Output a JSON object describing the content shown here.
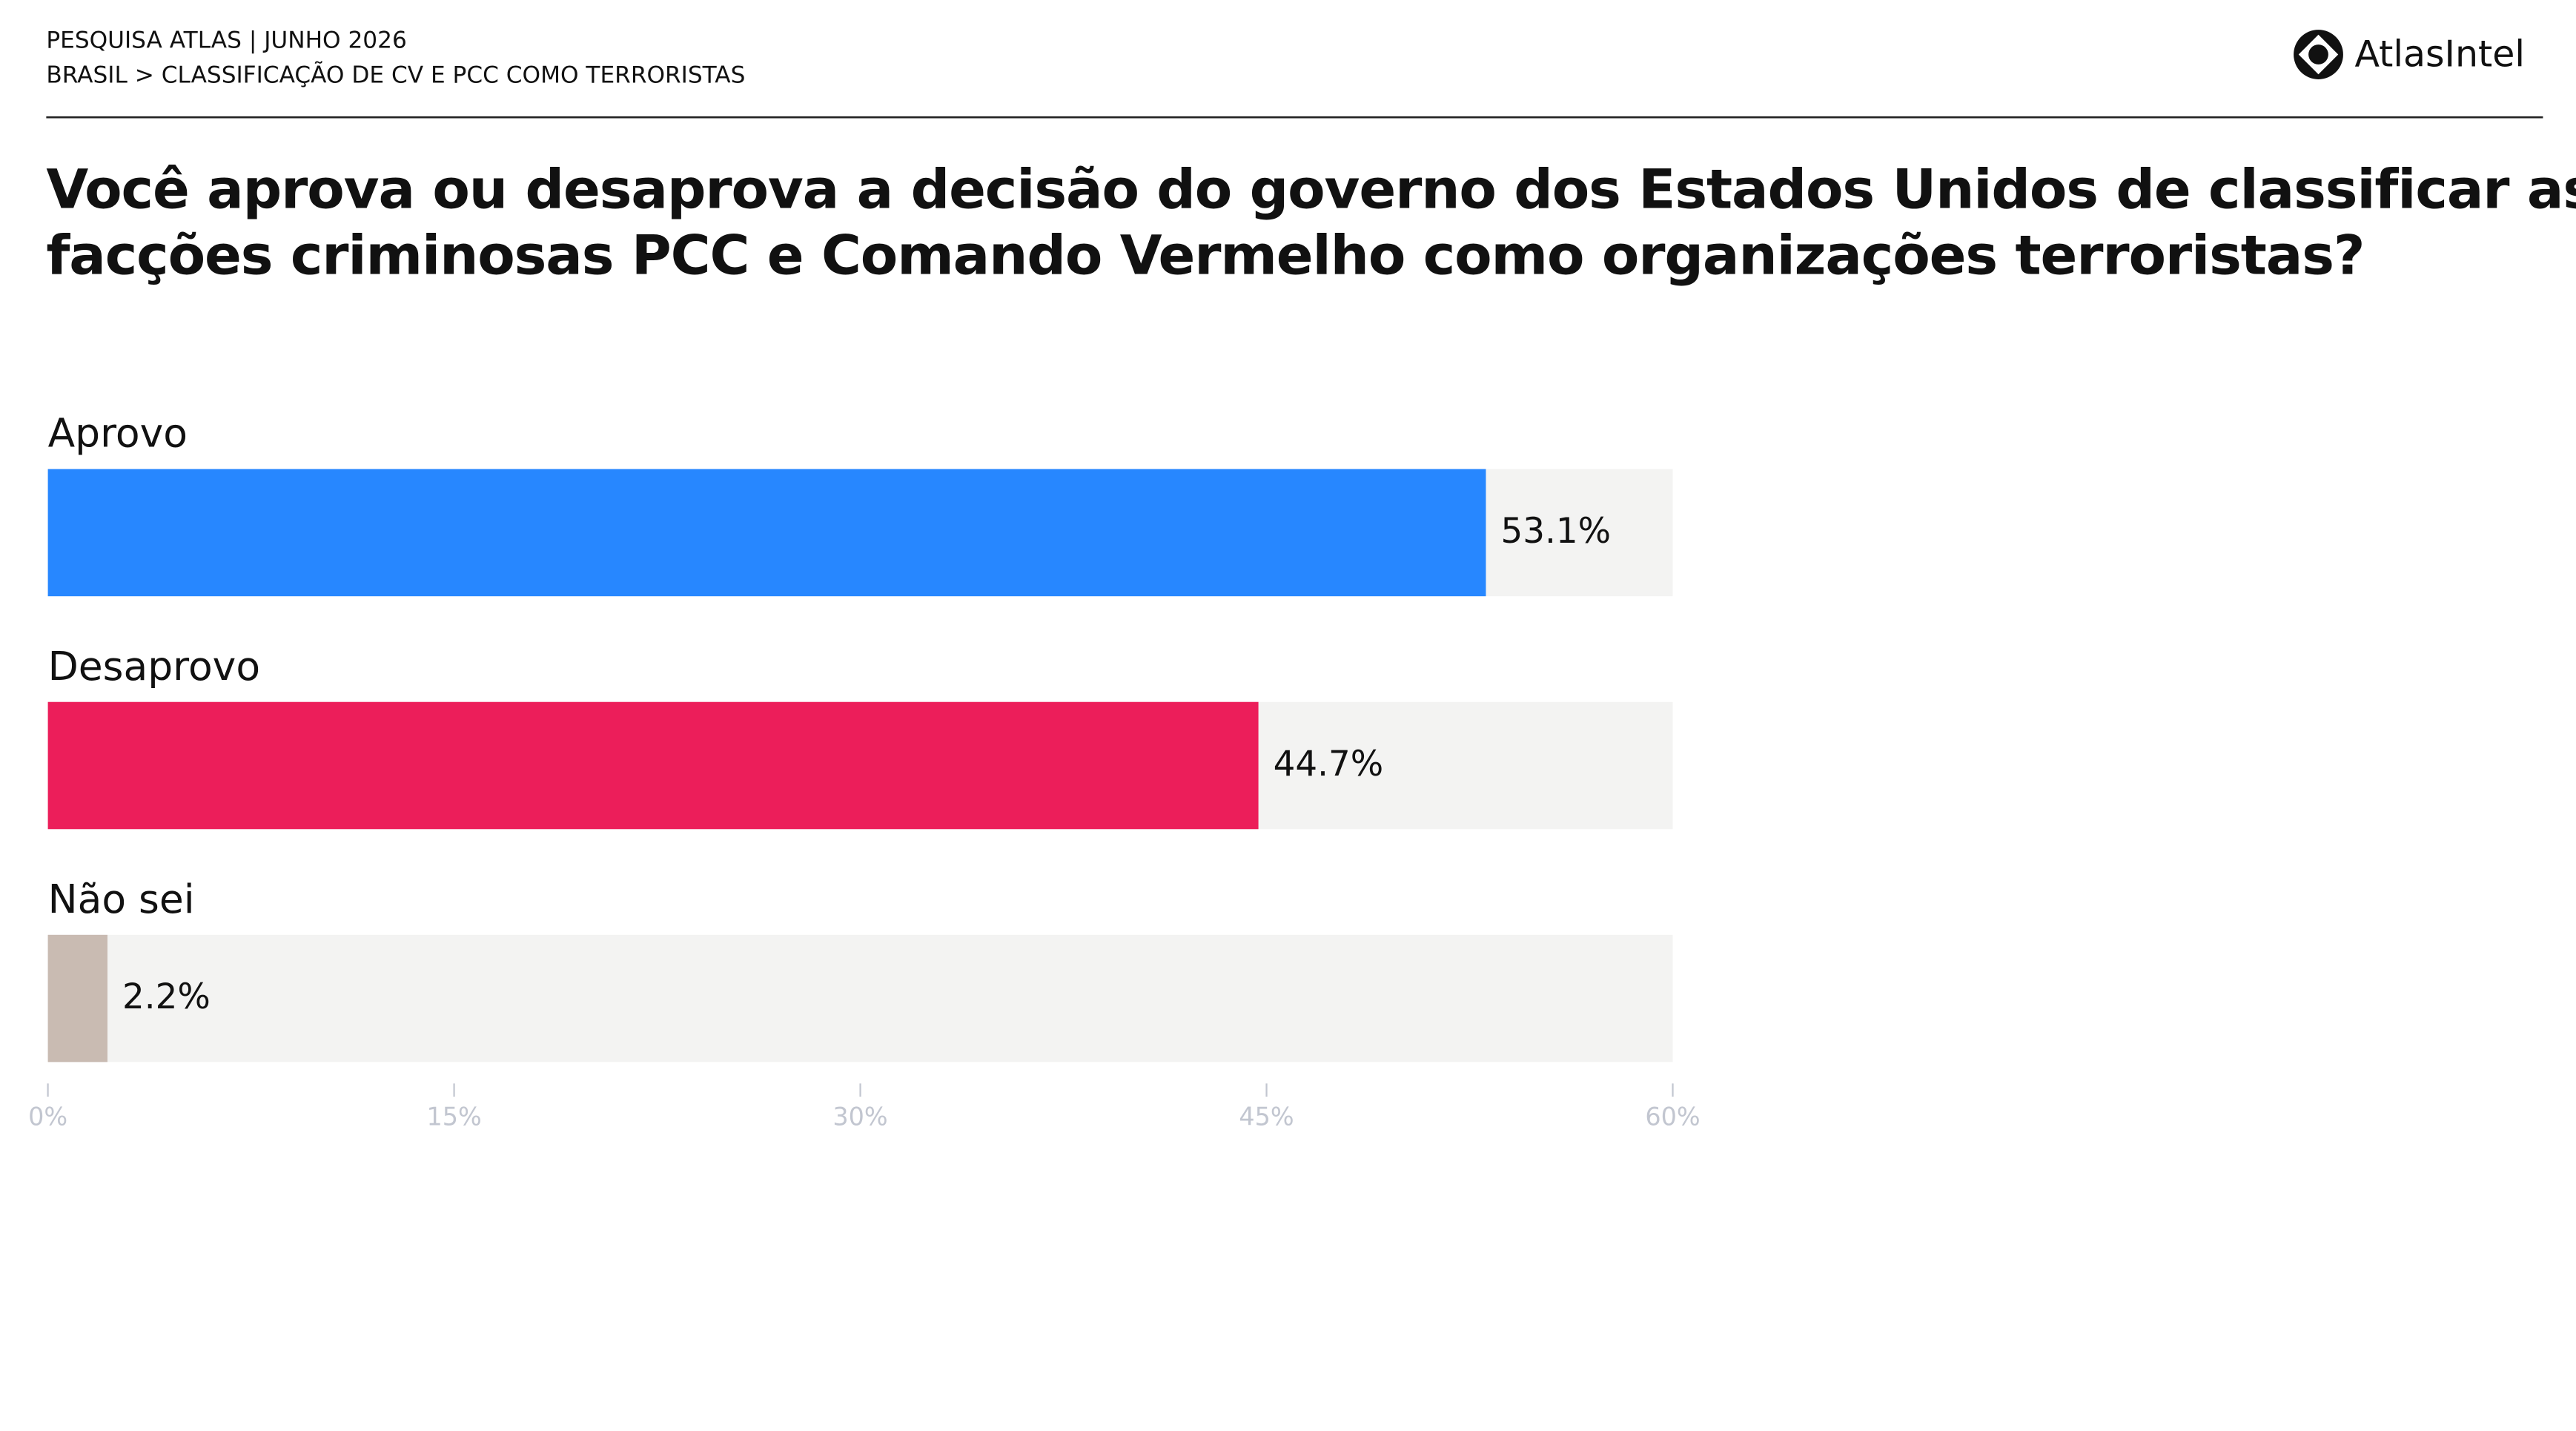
{
  "header": {
    "line1": "PESQUISA ATLAS | JUNHO 2026",
    "line2": "BRASIL > CLASSIFICAÇÃO DE CV E PCC COMO TERRORISTAS",
    "logo": "AtlasIntel"
  },
  "chart_data": {
    "type": "bar",
    "orientation": "horizontal",
    "title": "Você aprova ou desaprova a decisão do governo dos Estados Unidos de classificar as facções criminosas PCC e Comando Vermelho como organizações terroristas?",
    "categories": [
      "Aprovo",
      "Desaprovo",
      "Não sei"
    ],
    "values": [
      53.1,
      44.7,
      2.2
    ],
    "value_labels": [
      "53.1%",
      "44.7%",
      "2.2%"
    ],
    "colors": [
      "#2787ff",
      "#ec1e5a",
      "#c9bbb2"
    ],
    "track_color": "#f3f3f2",
    "xlim": [
      0,
      60
    ],
    "xticks": [
      {
        "value": 0,
        "label": "0%"
      },
      {
        "value": 15,
        "label": "15%"
      },
      {
        "value": 30,
        "label": "30%"
      },
      {
        "value": 45,
        "label": "45%"
      },
      {
        "value": 60,
        "label": "60%"
      }
    ]
  }
}
